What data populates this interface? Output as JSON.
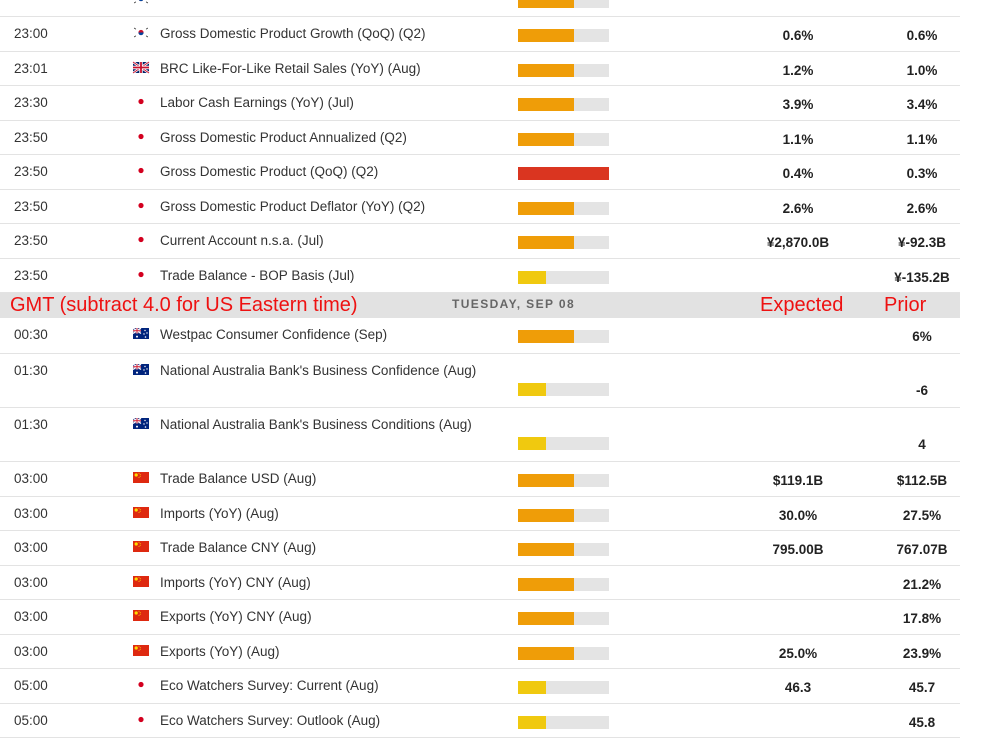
{
  "colors": {
    "low": "#f0c90f",
    "medium": "#ef9d08",
    "high": "#da3520",
    "track": "#e4e4e4"
  },
  "separator": {
    "gmt_note": "GMT (subtract 4.0 for US Eastern time)",
    "day_label": "TUESDAY, SEP 08",
    "expected_label": "Expected",
    "prior_label": "Prior"
  },
  "events": [
    {
      "time": "",
      "country": "kr",
      "title": "",
      "impact": "medium",
      "expected": "",
      "prior": ""
    },
    {
      "time": "23:00",
      "country": "kr",
      "title": "Gross Domestic Product Growth (QoQ) (Q2)",
      "impact": "medium",
      "expected": "0.6%",
      "prior": "0.6%"
    },
    {
      "time": "23:01",
      "country": "gb",
      "title": "BRC Like-For-Like Retail Sales (YoY) (Aug)",
      "impact": "medium",
      "expected": "1.2%",
      "prior": "1.0%"
    },
    {
      "time": "23:30",
      "country": "jp",
      "title": "Labor Cash Earnings (YoY) (Jul)",
      "impact": "medium",
      "expected": "3.9%",
      "prior": "3.4%"
    },
    {
      "time": "23:50",
      "country": "jp",
      "title": "Gross Domestic Product Annualized (Q2)",
      "impact": "medium",
      "expected": "1.1%",
      "prior": "1.1%"
    },
    {
      "time": "23:50",
      "country": "jp",
      "title": "Gross Domestic Product (QoQ) (Q2)",
      "impact": "high",
      "expected": "0.4%",
      "prior": "0.3%"
    },
    {
      "time": "23:50",
      "country": "jp",
      "title": "Gross Domestic Product Deflator (YoY) (Q2)",
      "impact": "medium",
      "expected": "2.6%",
      "prior": "2.6%"
    },
    {
      "time": "23:50",
      "country": "jp",
      "title": "Current Account n.s.a. (Jul)",
      "impact": "medium",
      "expected": "¥2,870.0B",
      "prior": "¥-92.3B"
    },
    {
      "time": "23:50",
      "country": "jp",
      "title": "Trade Balance - BOP Basis (Jul)",
      "impact": "low",
      "expected": "",
      "prior": "¥-135.2B"
    },
    {
      "time": "00:30",
      "country": "au",
      "title": "Westpac Consumer Confidence (Sep)",
      "impact": "medium",
      "expected": "",
      "prior": "6%"
    },
    {
      "time": "01:30",
      "country": "au",
      "title": "National Australia Bank's Business Confidence (Aug)",
      "impact": "low",
      "expected": "",
      "prior": "-6"
    },
    {
      "time": "01:30",
      "country": "au",
      "title": "National Australia Bank's Business Conditions (Aug)",
      "impact": "low",
      "expected": "",
      "prior": "4"
    },
    {
      "time": "03:00",
      "country": "cn",
      "title": "Trade Balance USD (Aug)",
      "impact": "medium",
      "expected": "$119.1B",
      "prior": "$112.5B"
    },
    {
      "time": "03:00",
      "country": "cn",
      "title": "Imports (YoY) (Aug)",
      "impact": "medium",
      "expected": "30.0%",
      "prior": "27.5%"
    },
    {
      "time": "03:00",
      "country": "cn",
      "title": "Trade Balance CNY (Aug)",
      "impact": "medium",
      "expected": "795.00B",
      "prior": "767.07B"
    },
    {
      "time": "03:00",
      "country": "cn",
      "title": "Imports (YoY) CNY (Aug)",
      "impact": "medium",
      "expected": "",
      "prior": "21.2%"
    },
    {
      "time": "03:00",
      "country": "cn",
      "title": "Exports (YoY) CNY (Aug)",
      "impact": "medium",
      "expected": "",
      "prior": "17.8%"
    },
    {
      "time": "03:00",
      "country": "cn",
      "title": "Exports (YoY) (Aug)",
      "impact": "medium",
      "expected": "25.0%",
      "prior": "23.9%"
    },
    {
      "time": "05:00",
      "country": "jp",
      "title": "Eco Watchers Survey: Current (Aug)",
      "impact": "low",
      "expected": "46.3",
      "prior": "45.7"
    },
    {
      "time": "05:00",
      "country": "jp",
      "title": "Eco Watchers Survey: Outlook (Aug)",
      "impact": "low",
      "expected": "",
      "prior": "45.8"
    }
  ]
}
